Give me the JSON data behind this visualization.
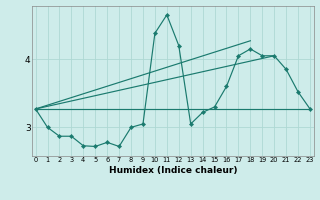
{
  "xlabel": "Humidex (Indice chaleur)",
  "bg_color": "#ceecea",
  "line_color": "#1a7a6e",
  "grid_color": "#aed8d4",
  "x": [
    0,
    1,
    2,
    3,
    4,
    5,
    6,
    7,
    8,
    9,
    10,
    11,
    12,
    13,
    14,
    15,
    16,
    17,
    18,
    19,
    20,
    21,
    22,
    23
  ],
  "zigzag": [
    3.27,
    3.0,
    2.87,
    2.87,
    2.73,
    2.72,
    2.78,
    2.72,
    3.0,
    3.05,
    4.38,
    4.65,
    4.2,
    3.05,
    3.22,
    3.3,
    3.6,
    4.05,
    4.15,
    4.05,
    4.05,
    3.85,
    3.52,
    3.27
  ],
  "trend1_x": [
    0,
    23
  ],
  "trend1_y": [
    3.27,
    3.27
  ],
  "trend2_x": [
    0,
    18
  ],
  "trend2_y": [
    3.27,
    4.27
  ],
  "trend3_x": [
    0,
    20
  ],
  "trend3_y": [
    3.27,
    4.05
  ],
  "xlim": [
    -0.3,
    23.3
  ],
  "ylim": [
    2.58,
    4.78
  ],
  "yticks": [
    3,
    4
  ],
  "xticks": [
    0,
    1,
    2,
    3,
    4,
    5,
    6,
    7,
    8,
    9,
    10,
    11,
    12,
    13,
    14,
    15,
    16,
    17,
    18,
    19,
    20,
    21,
    22,
    23
  ]
}
